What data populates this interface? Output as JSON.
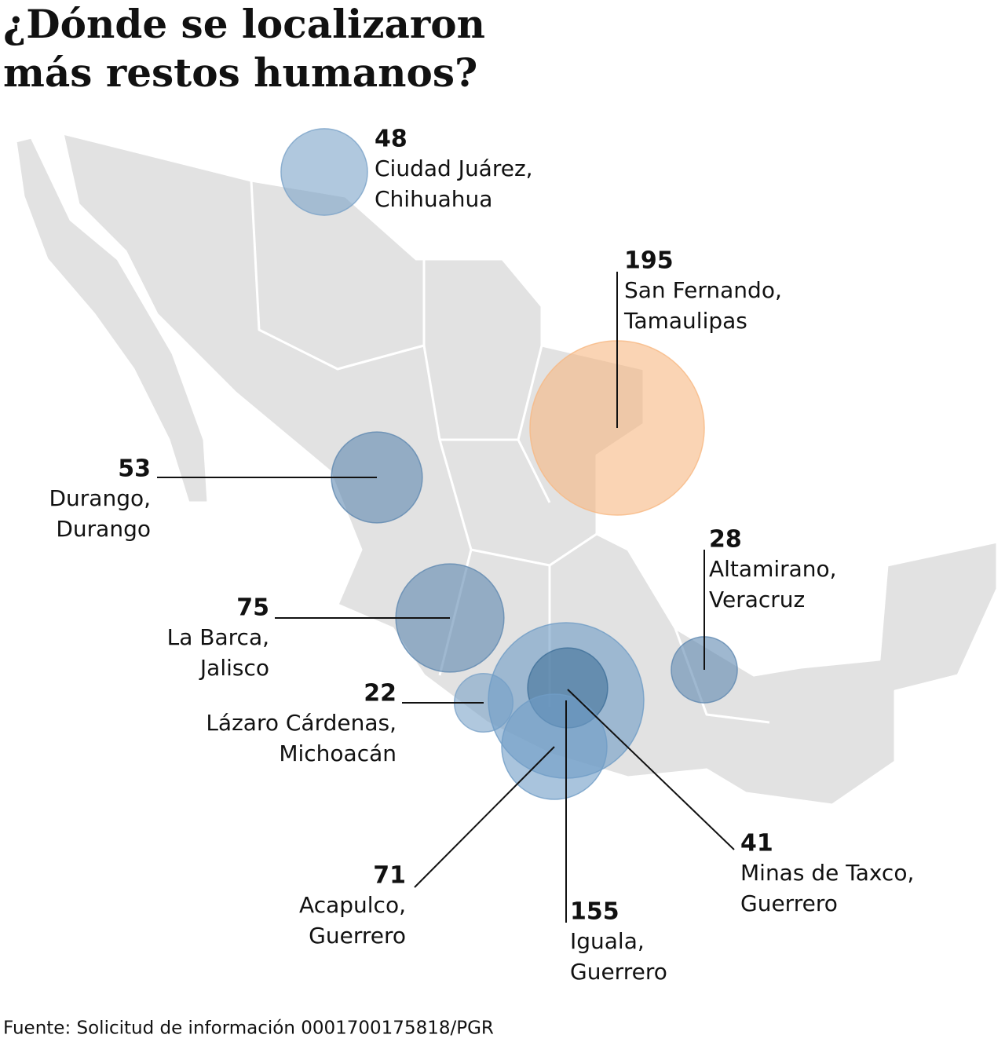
{
  "title": [
    "¿Dónde se localizaron",
    "más restos humanos?"
  ],
  "locations": [
    {
      "value": 48,
      "place": "Ciudad Juárez,",
      "state": "Chihuahua",
      "color": "#7ba3c8"
    },
    {
      "value": 195,
      "place": "San Fernando,",
      "state": "Tamaulipas",
      "color": "#f7b882"
    },
    {
      "value": 53,
      "place": "Durango,",
      "state": "Durango",
      "color": "#5f88b0"
    },
    {
      "value": 75,
      "place": "La Barca,",
      "state": "Jalisco",
      "color": "#5f88b0"
    },
    {
      "value": 28,
      "place": "Altamirano,",
      "state": "Veracruz",
      "color": "#5f88b0"
    },
    {
      "value": 22,
      "place": "Lázaro Cárdenas,",
      "state": "Michoacán",
      "color": "#7ba3c8"
    },
    {
      "value": 155,
      "place": "Iguala,",
      "state": "Guerrero",
      "color": "#6f9cc6"
    },
    {
      "value": 41,
      "place": "Minas de Taxco,",
      "state": "Guerrero",
      "color": "#3f6f98"
    },
    {
      "value": 71,
      "place": "Acapulco,",
      "state": "Guerrero",
      "color": "#6f9cc6"
    }
  ],
  "source": "Fuente: Solicitud de información 0001700175818/PGR"
}
